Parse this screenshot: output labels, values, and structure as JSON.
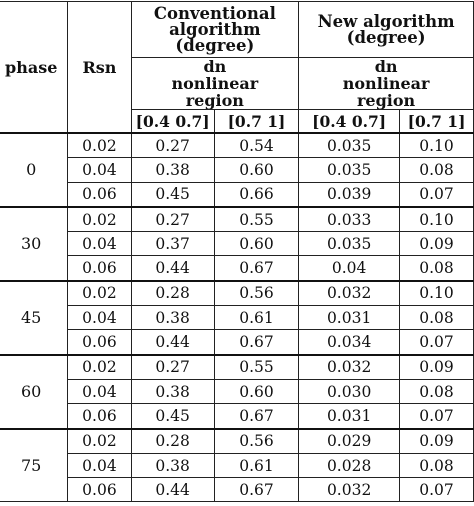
{
  "header": {
    "phase": "phase",
    "rsn": "Rsn",
    "conventional": "Conventional algorithm (degree)",
    "new_algorithm": "New algorithm (degree)",
    "dn_conventional": "dn nonlinear region",
    "dn_new": "dn nonlinear region",
    "range1_conv": "[0.4  0.7]",
    "range2_conv": "[0.7  1]",
    "range1_new": "[0.4  0.7]",
    "range2_new": "[0.7  1]"
  },
  "groups": [
    {
      "phase": "0",
      "rows": [
        {
          "rsn": "0.02",
          "c1": "0.27",
          "c2": "0.54",
          "n1": "0.035",
          "n2": "0.10"
        },
        {
          "rsn": "0.04",
          "c1": "0.38",
          "c2": "0.60",
          "n1": "0.035",
          "n2": "0.08"
        },
        {
          "rsn": "0.06",
          "c1": "0.45",
          "c2": "0.66",
          "n1": "0.039",
          "n2": "0.07"
        }
      ]
    },
    {
      "phase": "30",
      "rows": [
        {
          "rsn": "0.02",
          "c1": "0.27",
          "c2": "0.55",
          "n1": "0.033",
          "n2": "0.10"
        },
        {
          "rsn": "0.04",
          "c1": "0.37",
          "c2": "0.60",
          "n1": "0.035",
          "n2": "0.09"
        },
        {
          "rsn": "0.06",
          "c1": "0.44",
          "c2": "0.67",
          "n1": "0.04",
          "n2": "0.08"
        }
      ]
    },
    {
      "phase": "45",
      "rows": [
        {
          "rsn": "0.02",
          "c1": "0.28",
          "c2": "0.56",
          "n1": "0.032",
          "n2": "0.10"
        },
        {
          "rsn": "0.04",
          "c1": "0.38",
          "c2": "0.61",
          "n1": "0.031",
          "n2": "0.08"
        },
        {
          "rsn": "0.06",
          "c1": "0.44",
          "c2": "0.67",
          "n1": "0.034",
          "n2": "0.07"
        }
      ]
    },
    {
      "phase": "60",
      "rows": [
        {
          "rsn": "0.02",
          "c1": "0.27",
          "c2": "0.55",
          "n1": "0.032",
          "n2": "0.09"
        },
        {
          "rsn": "0.04",
          "c1": "0.38",
          "c2": "0.60",
          "n1": "0.030",
          "n2": "0.08"
        },
        {
          "rsn": "0.06",
          "c1": "0.45",
          "c2": "0.67",
          "n1": "0.031",
          "n2": "0.07"
        }
      ]
    },
    {
      "phase": "75",
      "rows": [
        {
          "rsn": "0.02",
          "c1": "0.28",
          "c2": "0.56",
          "n1": "0.029",
          "n2": "0.09"
        },
        {
          "rsn": "0.04",
          "c1": "0.38",
          "c2": "0.61",
          "n1": "0.028",
          "n2": "0.08"
        },
        {
          "rsn": "0.06",
          "c1": "0.44",
          "c2": "0.67",
          "n1": "0.032",
          "n2": "0.07"
        }
      ]
    }
  ]
}
